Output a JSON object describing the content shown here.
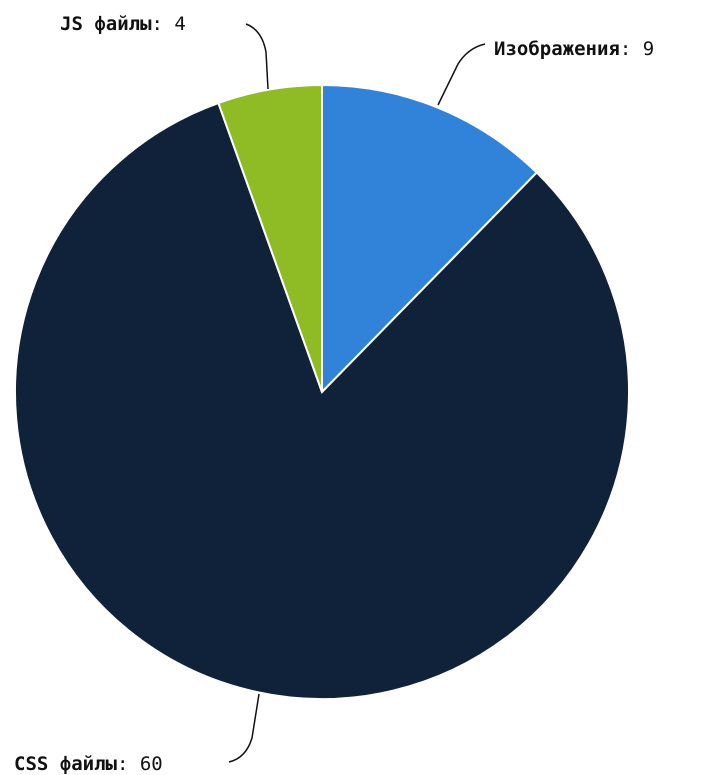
{
  "chart_data": {
    "type": "pie",
    "title": "",
    "slices": [
      {
        "label": "Изображения",
        "value": 9,
        "value_text": "9",
        "color": "#3182d9"
      },
      {
        "label": "CSS файлы",
        "value": 60,
        "value_text": "60",
        "color": "#10223a"
      },
      {
        "label": "JS файлы",
        "value": 4,
        "value_text": "4",
        "color": "#8fbb24"
      }
    ],
    "start_angle_deg": 0,
    "direction": "clockwise",
    "separator": ": "
  }
}
